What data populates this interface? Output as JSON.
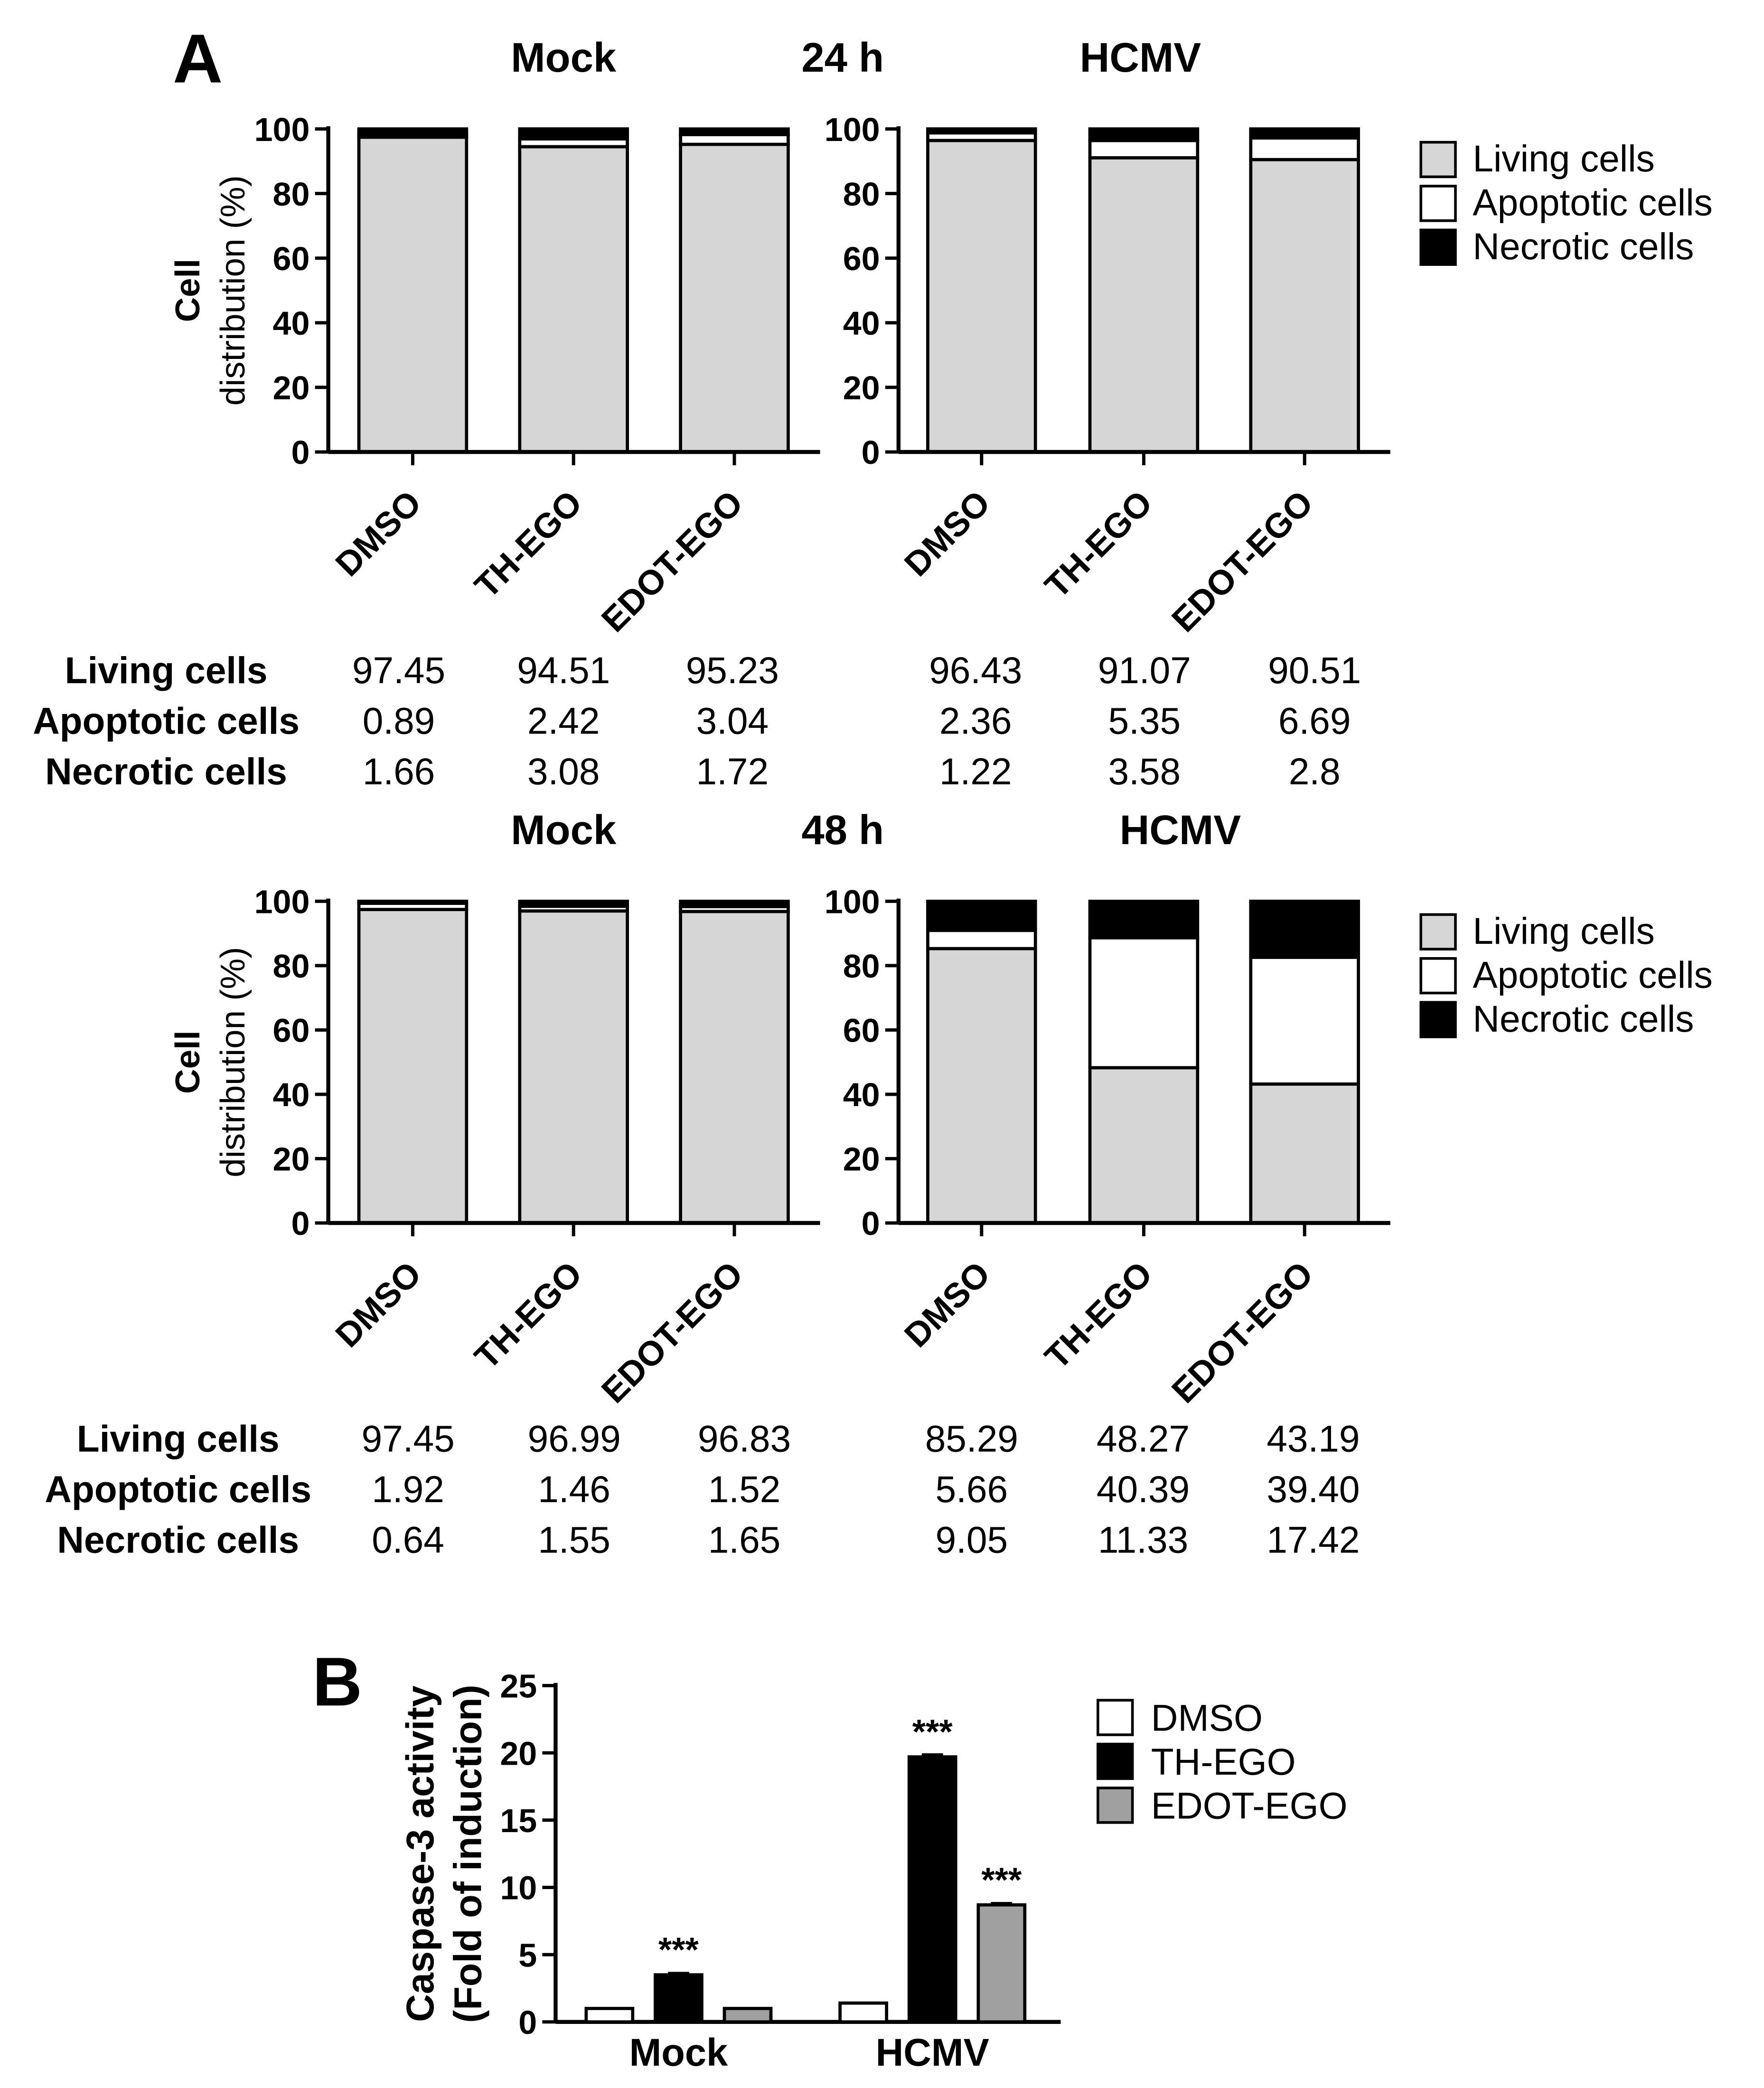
{
  "panel_a": {
    "label": "A",
    "y_axis_label_line1": "Cell",
    "y_axis_label_line2": "distribution (%)",
    "legend": [
      "Living cells",
      "Apoptotic cells",
      "Necrotic cells"
    ],
    "row_labels": [
      "Living cells",
      "Apoptotic cells",
      "Necrotic cells"
    ]
  },
  "panel_b": {
    "label": "B"
  },
  "chart_data": [
    {
      "type": "bar",
      "stacked": true,
      "title": "Mock",
      "time_label": "24 h",
      "categories": [
        "DMSO",
        "TH-EGO",
        "EDOT-EGO"
      ],
      "ylabel": "Cell distribution (%)",
      "ylim": [
        0,
        100
      ],
      "yticks": [
        0,
        20,
        40,
        60,
        80,
        100
      ],
      "series": [
        {
          "name": "Living cells",
          "values": [
            97.45,
            94.51,
            95.23
          ],
          "labels": [
            "97.45",
            "94.51",
            "95.23"
          ],
          "color": "#d6d6d6"
        },
        {
          "name": "Apoptotic cells",
          "values": [
            0.89,
            2.42,
            3.04
          ],
          "labels": [
            "0.89",
            "2.42",
            "3.04"
          ],
          "color": "#ffffff"
        },
        {
          "name": "Necrotic cells",
          "values": [
            1.66,
            3.08,
            1.72
          ],
          "labels": [
            "1.66",
            "3.08",
            "1.72"
          ],
          "color": "#000000"
        }
      ]
    },
    {
      "type": "bar",
      "stacked": true,
      "title": "HCMV",
      "categories": [
        "DMSO",
        "TH-EGO",
        "EDOT-EGO"
      ],
      "ylim": [
        0,
        100
      ],
      "yticks": [
        0,
        20,
        40,
        60,
        80,
        100
      ],
      "series": [
        {
          "name": "Living cells",
          "values": [
            96.43,
            91.07,
            90.51
          ],
          "labels": [
            "96.43",
            "91.07",
            "90.51"
          ],
          "color": "#d6d6d6"
        },
        {
          "name": "Apoptotic cells",
          "values": [
            2.36,
            5.35,
            6.69
          ],
          "labels": [
            "2.36",
            "5.35",
            "6.69"
          ],
          "color": "#ffffff"
        },
        {
          "name": "Necrotic cells",
          "values": [
            1.22,
            3.58,
            2.8
          ],
          "labels": [
            "1.22",
            "3.58",
            "2.8"
          ],
          "color": "#000000"
        }
      ]
    },
    {
      "type": "bar",
      "stacked": true,
      "title": "Mock",
      "time_label": "48 h",
      "categories": [
        "DMSO",
        "TH-EGO",
        "EDOT-EGO"
      ],
      "ylabel": "Cell distribution (%)",
      "ylim": [
        0,
        100
      ],
      "yticks": [
        0,
        20,
        40,
        60,
        80,
        100
      ],
      "series": [
        {
          "name": "Living cells",
          "values": [
            97.45,
            96.99,
            96.83
          ],
          "labels": [
            "97.45",
            "96.99",
            "96.83"
          ],
          "color": "#d6d6d6"
        },
        {
          "name": "Apoptotic cells",
          "values": [
            1.92,
            1.46,
            1.52
          ],
          "labels": [
            "1.92",
            "1.46",
            "1.52"
          ],
          "color": "#ffffff"
        },
        {
          "name": "Necrotic cells",
          "values": [
            0.64,
            1.55,
            1.65
          ],
          "labels": [
            "0.64",
            "1.55",
            "1.65"
          ],
          "color": "#000000"
        }
      ]
    },
    {
      "type": "bar",
      "stacked": true,
      "title": "HCMV",
      "categories": [
        "DMSO",
        "TH-EGO",
        "EDOT-EGO"
      ],
      "ylim": [
        0,
        100
      ],
      "yticks": [
        0,
        20,
        40,
        60,
        80,
        100
      ],
      "series": [
        {
          "name": "Living cells",
          "values": [
            85.29,
            48.27,
            43.19
          ],
          "labels": [
            "85.29",
            "48.27",
            "43.19"
          ],
          "color": "#d6d6d6"
        },
        {
          "name": "Apoptotic cells",
          "values": [
            5.66,
            40.39,
            39.4
          ],
          "labels": [
            "5.66",
            "40.39",
            "39.40"
          ],
          "color": "#ffffff"
        },
        {
          "name": "Necrotic cells",
          "values": [
            9.05,
            11.33,
            17.42
          ],
          "labels": [
            "9.05",
            "11.33",
            "17.42"
          ],
          "color": "#000000"
        }
      ]
    },
    {
      "type": "bar",
      "title": "",
      "categories": [
        "Mock",
        "HCMV"
      ],
      "ylabel_line1": "Caspase-3 activity",
      "ylabel_line2": "(Fold of induction)",
      "ylim": [
        0,
        25
      ],
      "yticks": [
        0,
        5,
        10,
        15,
        20,
        25
      ],
      "legend": [
        "DMSO",
        "TH-EGO",
        "EDOT-EGO"
      ],
      "series": [
        {
          "name": "DMSO",
          "values": [
            1.0,
            1.4
          ],
          "errors": [
            0,
            0
          ],
          "sig": [
            "",
            ""
          ],
          "color": "#ffffff"
        },
        {
          "name": "TH-EGO",
          "values": [
            3.5,
            19.7
          ],
          "errors": [
            0.1,
            0.15
          ],
          "sig": [
            "***",
            "***"
          ],
          "color": "#000000"
        },
        {
          "name": "EDOT-EGO",
          "values": [
            1.0,
            8.7
          ],
          "errors": [
            0,
            0.1
          ],
          "sig": [
            "",
            "***"
          ],
          "color": "#a0a0a0"
        }
      ]
    }
  ]
}
